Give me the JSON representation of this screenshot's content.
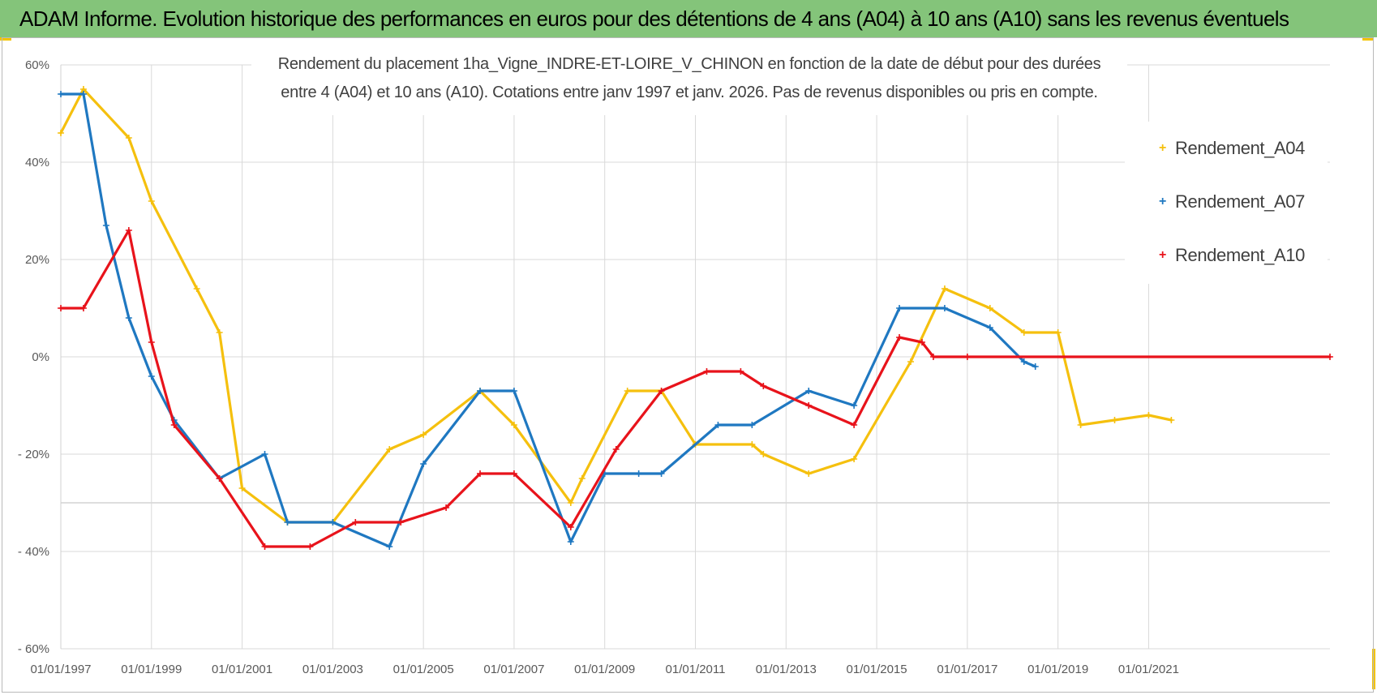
{
  "header": {
    "title": "ADAM Informe. Evolution historique des performances en euros pour des détentions de 4 ans (A04) à 10 ans (A10) sans les revenus éventuels"
  },
  "colors": {
    "header_bg": "#84c47a",
    "corner_accent": "#f2c300",
    "grid": "#d9d9d9",
    "axis_text": "#595959"
  },
  "chart_data": {
    "type": "line",
    "subtitle_line1": "Rendement du placement 1ha_Vigne_INDRE-ET-LOIRE_V_CHINON en fonction de la date de début pour des durées",
    "subtitle_line2": "entre 4 (A04) et 10 ans (A10).  Cotations entre janv 1997 et janv. 2026. Pas de revenus disponibles ou pris en compte.",
    "xlabel": "",
    "ylabel": "",
    "ylim": [
      -60,
      60
    ],
    "xlim": [
      1997.0,
      2025.0
    ],
    "y_ticks": [
      60,
      40,
      20,
      0,
      -20,
      -40,
      -60
    ],
    "y_tick_labels": [
      "60%",
      "40%",
      "20%",
      "0%",
      "- 20%",
      "- 40%",
      "- 60%"
    ],
    "x_tick_values": [
      1997,
      1999,
      2001,
      2003,
      2005,
      2007,
      2009,
      2011,
      2013,
      2015,
      2017,
      2019,
      2021
    ],
    "x_tick_labels": [
      "01/01/1997",
      "01/01/1999",
      "01/01/2001",
      "01/01/2003",
      "01/01/2005",
      "01/01/2007",
      "01/01/2009",
      "01/01/2011",
      "01/01/2013",
      "01/01/2015",
      "01/01/2017",
      "01/01/2019",
      "01/01/2021"
    ],
    "grid": true,
    "marker": "+",
    "legend_position": "right",
    "series": [
      {
        "name": "Rendement_A04",
        "color": "#f5c00e",
        "x": [
          1997.0,
          1997.5,
          1998.5,
          1999.0,
          2000.0,
          2000.5,
          2001.0,
          2002.0,
          2003.0,
          2004.25,
          2005.0,
          2006.25,
          2007.0,
          2008.25,
          2008.5,
          2009.5,
          2010.25,
          2011.0,
          2012.25,
          2012.5,
          2013.5,
          2014.5,
          2015.75,
          2016.5,
          2017.5,
          2018.25,
          2019.0,
          2019.5,
          2020.25,
          2021.0,
          2021.5
        ],
        "y": [
          46,
          55,
          45,
          32,
          14,
          5,
          -27,
          -34,
          -34,
          -19,
          -16,
          -7,
          -14,
          -30,
          -25,
          -7,
          -7,
          -18,
          -18,
          -20,
          -24,
          -21,
          -1,
          14,
          10,
          5,
          5,
          -14,
          -13,
          -12,
          -13
        ]
      },
      {
        "name": "Rendement_A07",
        "color": "#1f78c1",
        "x": [
          1997.0,
          1997.5,
          1998.0,
          1998.5,
          1999.0,
          1999.5,
          2000.5,
          2001.5,
          2002.0,
          2003.0,
          2004.25,
          2005.0,
          2006.25,
          2007.0,
          2008.25,
          2009.0,
          2009.75,
          2010.25,
          2011.5,
          2012.25,
          2013.5,
          2014.5,
          2015.5,
          2016.5,
          2017.5,
          2018.25,
          2018.5
        ],
        "y": [
          54,
          54,
          27,
          8,
          -4,
          -13,
          -25,
          -20,
          -34,
          -34,
          -39,
          -22,
          -7,
          -7,
          -38,
          -24,
          -24,
          -24,
          -14,
          -14,
          -7,
          -10,
          10,
          10,
          6,
          -1,
          -2
        ]
      },
      {
        "name": "Rendement_A10",
        "color": "#e8131b",
        "x": [
          1997.0,
          1997.5,
          1998.5,
          1999.0,
          1999.5,
          2000.5,
          2001.5,
          2002.5,
          2003.5,
          2004.5,
          2005.5,
          2006.25,
          2007.0,
          2008.25,
          2009.25,
          2010.25,
          2011.25,
          2012.0,
          2012.5,
          2013.5,
          2014.5,
          2015.5,
          2016.0,
          2016.25,
          2017.0,
          2025.0
        ],
        "y": [
          10,
          10,
          26,
          3,
          -14,
          -25,
          -39,
          -39,
          -34,
          -34,
          -31,
          -24,
          -24,
          -35,
          -19,
          -7,
          -3,
          -3,
          -6,
          -10,
          -14,
          4,
          3,
          0,
          0,
          0
        ]
      }
    ]
  }
}
